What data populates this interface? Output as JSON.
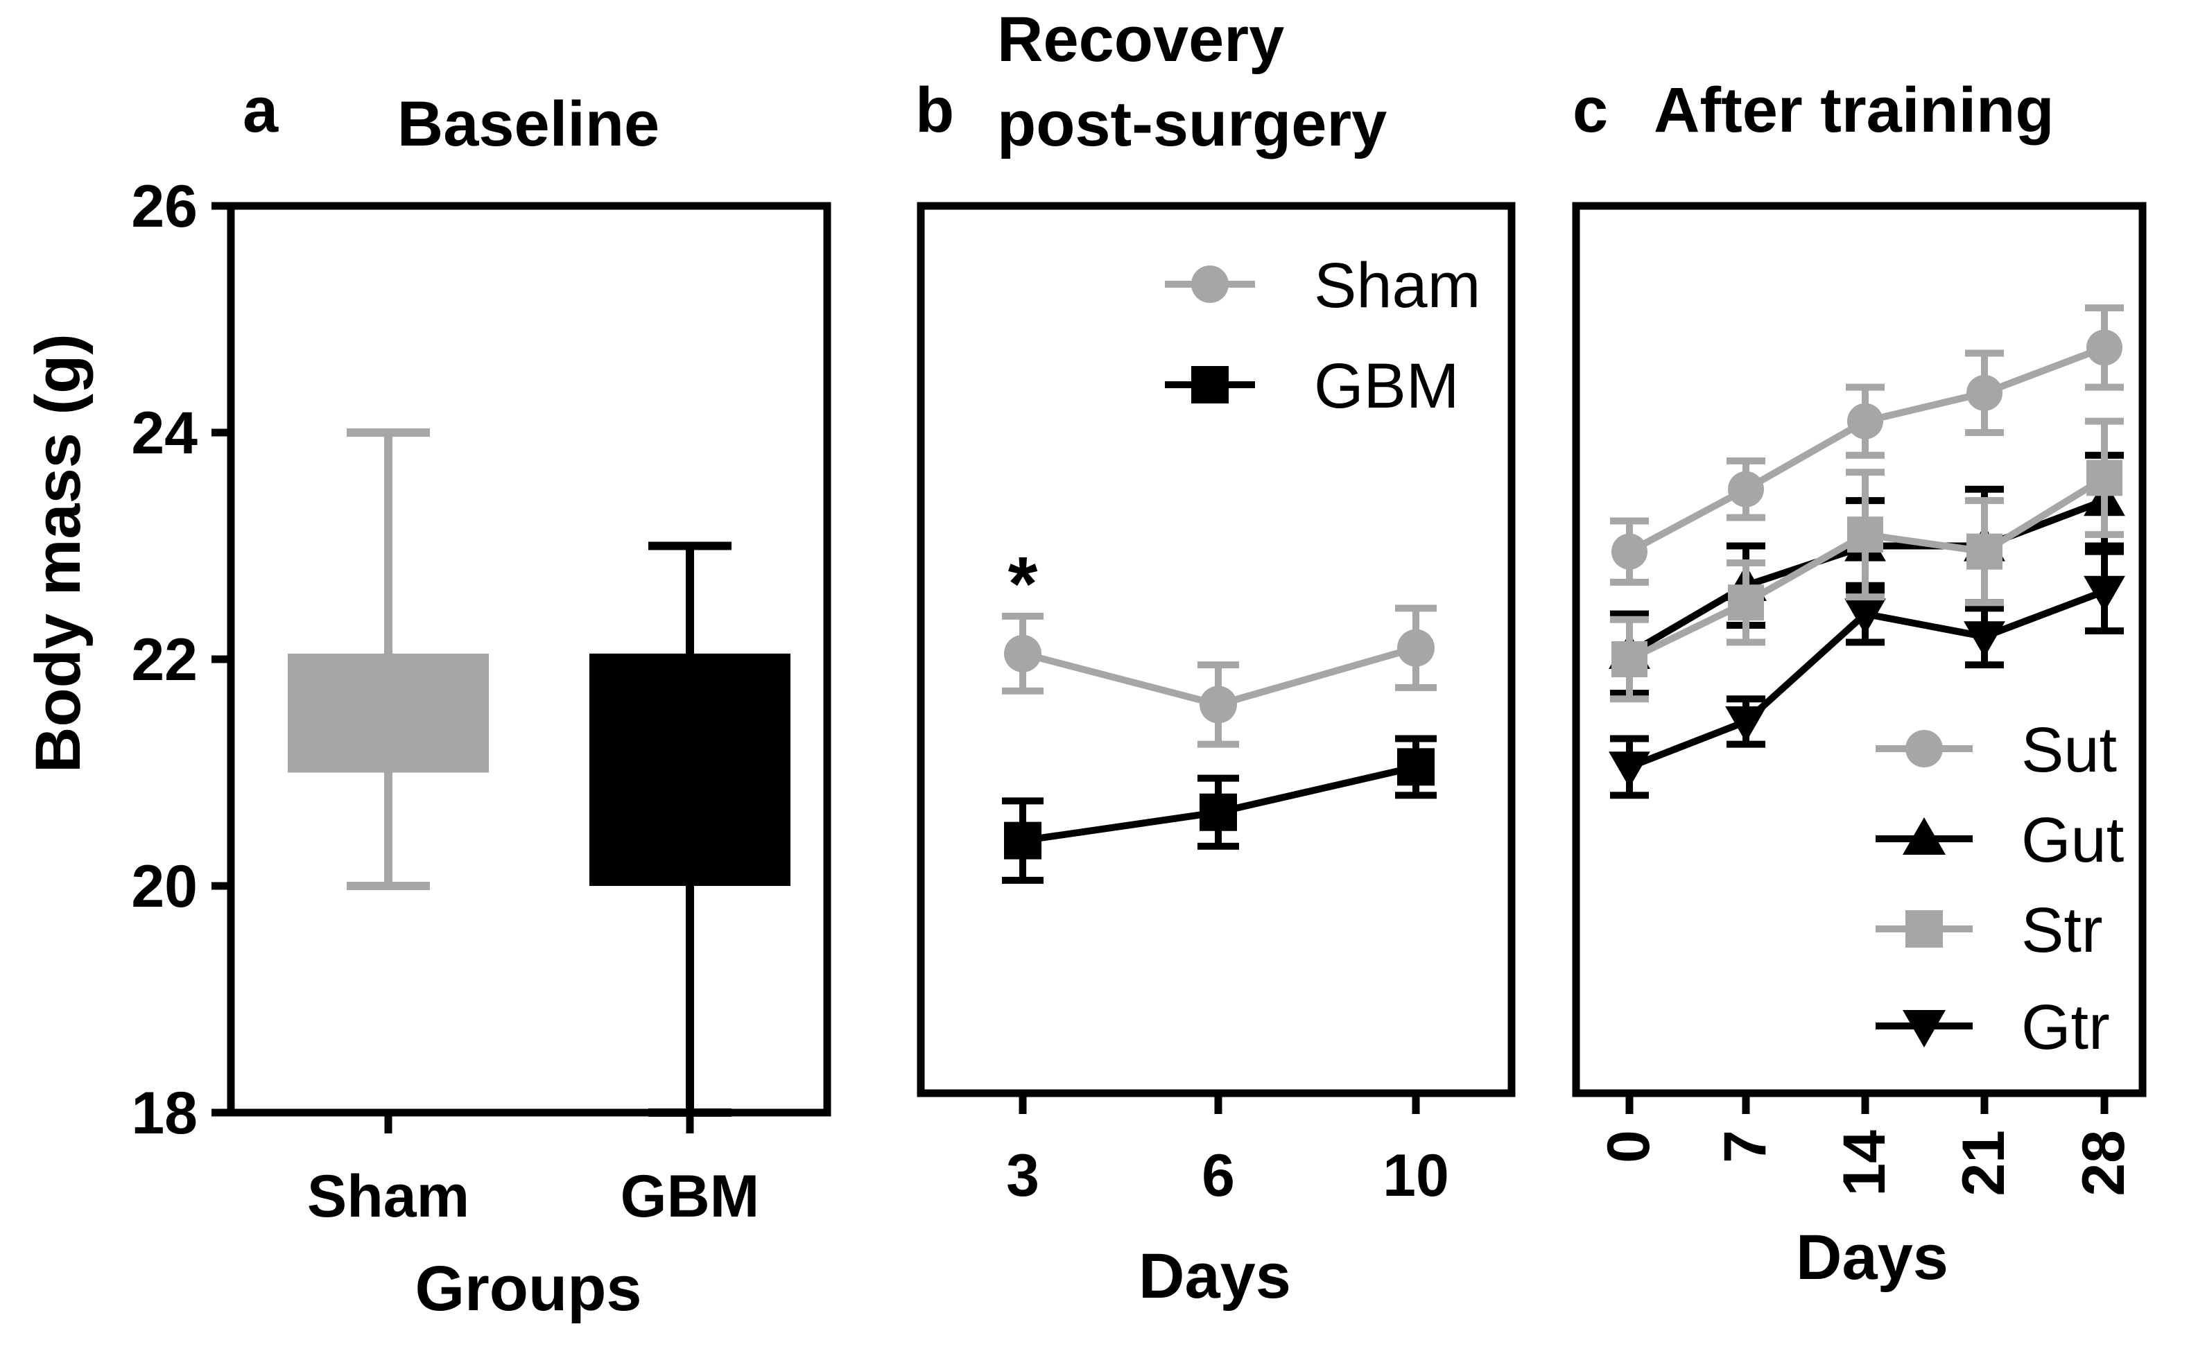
{
  "colors": {
    "gray": "#a6a6a7",
    "black": "#000000"
  },
  "chart_data": [
    {
      "panel": "a",
      "type": "bar",
      "title": "Baseline",
      "xlabel": "Groups",
      "ylabel": "Body mass (g)",
      "ylim": [
        18,
        26
      ],
      "yticks": [
        "26",
        "24",
        "22",
        "20",
        "18"
      ],
      "categories": [
        "Sham",
        "GBM"
      ],
      "boxes": [
        {
          "name": "Sham",
          "color": "gray",
          "low": 21,
          "high": 22.05,
          "whisker_min": 20,
          "whisker_max": 24
        },
        {
          "name": "GBM",
          "color": "black",
          "low": 20,
          "high": 22.05,
          "whisker_min": 18,
          "whisker_max": 23
        }
      ]
    },
    {
      "panel": "b",
      "type": "line",
      "title_lines": [
        "Recovery",
        "post-surgery"
      ],
      "xlabel": "Days",
      "ylim": [
        18,
        26
      ],
      "x": [
        3,
        6,
        10
      ],
      "xtick_labels": [
        "3",
        "6",
        "10"
      ],
      "annotation": "*",
      "series": [
        {
          "name": "Sham",
          "color": "gray",
          "marker": "circle",
          "values": [
            22.05,
            21.6,
            22.1
          ],
          "errors": [
            0.33,
            0.35,
            0.35
          ]
        },
        {
          "name": "GBM",
          "color": "black",
          "marker": "square",
          "values": [
            20.4,
            20.65,
            21.05
          ],
          "errors": [
            0.35,
            0.3,
            0.25
          ]
        }
      ],
      "legend": [
        "Sham",
        "GBM"
      ]
    },
    {
      "panel": "c",
      "type": "line",
      "title": "After training",
      "xlabel": "Days",
      "ylim": [
        18,
        26
      ],
      "x": [
        0,
        7,
        14,
        21,
        28
      ],
      "xtick_labels": [
        "0",
        "7",
        "14",
        "21",
        "28"
      ],
      "series": [
        {
          "name": "Sut",
          "color": "gray",
          "marker": "circle",
          "values": [
            22.95,
            23.5,
            24.1,
            24.35,
            24.75
          ],
          "errors": [
            0.27,
            0.25,
            0.3,
            0.35,
            0.35
          ]
        },
        {
          "name": "Gut",
          "color": "black",
          "marker": "triangle-up",
          "values": [
            22.05,
            22.65,
            23.0,
            23.0,
            23.4
          ],
          "errors": [
            0.35,
            0.35,
            0.4,
            0.5,
            0.4
          ]
        },
        {
          "name": "Str",
          "color": "gray",
          "marker": "square",
          "values": [
            22.0,
            22.5,
            23.1,
            22.95,
            23.6
          ],
          "errors": [
            0.35,
            0.35,
            0.55,
            0.45,
            0.5
          ]
        },
        {
          "name": "Gtr",
          "color": "black",
          "marker": "triangle-down",
          "values": [
            21.05,
            21.45,
            22.4,
            22.2,
            22.6
          ],
          "errors": [
            0.25,
            0.2,
            0.25,
            0.25,
            0.35
          ]
        }
      ],
      "legend": [
        "Sut",
        "Gut",
        "Str",
        "Gtr"
      ]
    }
  ]
}
